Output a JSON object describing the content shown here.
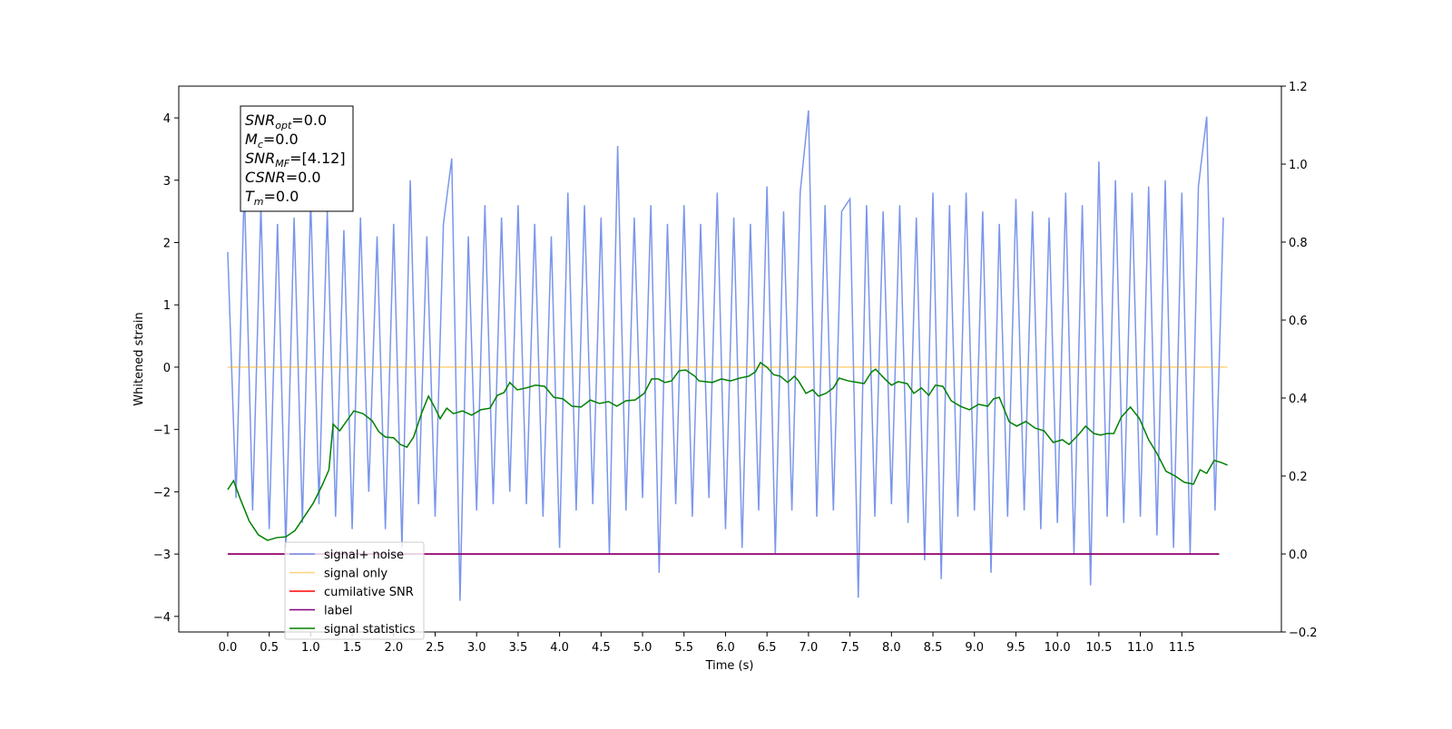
{
  "chart_data": {
    "type": "line",
    "xlabel": "Time (s)",
    "ylabel": "Whitened strain",
    "xlim": [
      -0.59,
      12.7
    ],
    "ylim": [
      -4.25,
      4.51
    ],
    "y2lim": [
      -0.2,
      1.2
    ],
    "xticks": [
      {
        "value": 0,
        "label": "0.0"
      },
      {
        "value": 0.5,
        "label": "0.5"
      },
      {
        "value": 1,
        "label": "1.0"
      },
      {
        "value": 1.5,
        "label": "1.5"
      },
      {
        "value": 2,
        "label": "2.0"
      },
      {
        "value": 2.5,
        "label": "2.5"
      },
      {
        "value": 3,
        "label": "3.0"
      },
      {
        "value": 3.5,
        "label": "3.5"
      },
      {
        "value": 4,
        "label": "4.0"
      },
      {
        "value": 4.5,
        "label": "4.5"
      },
      {
        "value": 5,
        "label": "5.0"
      },
      {
        "value": 5.5,
        "label": "5.5"
      },
      {
        "value": 6,
        "label": "6.0"
      },
      {
        "value": 6.5,
        "label": "6.5"
      },
      {
        "value": 7,
        "label": "7.0"
      },
      {
        "value": 7.5,
        "label": "7.5"
      },
      {
        "value": 8,
        "label": "8.0"
      },
      {
        "value": 8.5,
        "label": "8.5"
      },
      {
        "value": 9,
        "label": "9.0"
      },
      {
        "value": 9.5,
        "label": "9.5"
      },
      {
        "value": 10,
        "label": "10.0"
      },
      {
        "value": 10.5,
        "label": "10.5"
      },
      {
        "value": 11,
        "label": "11.0"
      },
      {
        "value": 11.5,
        "label": "11.5"
      }
    ],
    "yticks": [
      {
        "value": -4,
        "label": "−4"
      },
      {
        "value": -3,
        "label": "−3"
      },
      {
        "value": -2,
        "label": "−2"
      },
      {
        "value": -1,
        "label": "−1"
      },
      0,
      1,
      2,
      3,
      4
    ],
    "y2ticks": [
      {
        "value": -0.2,
        "label": "−0.2"
      },
      {
        "value": 0,
        "label": "0.0"
      },
      {
        "value": 0.2,
        "label": "0.2"
      },
      {
        "value": 0.4,
        "label": "0.4"
      },
      {
        "value": 0.6,
        "label": "0.6"
      },
      {
        "value": 0.8,
        "label": "0.8"
      },
      {
        "value": 1,
        "label": "1.0"
      },
      {
        "value": 1.2,
        "label": "1.2"
      }
    ],
    "legend": "lower left",
    "annotation": [
      {
        "name": "SNR",
        "sub": "opt",
        "text": "=0.0"
      },
      {
        "name": "M",
        "sub": "c",
        "text": "=0.0"
      },
      {
        "name": "SNR",
        "sub": "MF",
        "text": "=[4.12]"
      },
      {
        "name": "CSNR",
        "text": "=0.0"
      },
      {
        "name": "T",
        "sub": "m",
        "text": "=0.0"
      }
    ],
    "series": [
      {
        "name": "signal+ noise",
        "color": "#4169e1",
        "alpha": 0.7,
        "x": [
          0,
          0.1,
          0.2,
          0.3,
          0.4,
          0.5,
          0.6,
          0.7,
          0.8,
          0.9,
          1,
          1.1,
          1.2,
          1.3,
          1.4,
          1.5,
          1.6,
          1.7,
          1.8,
          1.9,
          2,
          2.1,
          2.2,
          2.3,
          2.4,
          2.5,
          2.6,
          2.7,
          2.8,
          2.9,
          3,
          3.1,
          3.2,
          3.3,
          3.4,
          3.5,
          3.6,
          3.7,
          3.8,
          3.9,
          4,
          4.1,
          4.2,
          4.3,
          4.4,
          4.5,
          4.6,
          4.7,
          4.8,
          4.9,
          5,
          5.1,
          5.2,
          5.3,
          5.4,
          5.5,
          5.6,
          5.7,
          5.8,
          5.9,
          6,
          6.1,
          6.2,
          6.3,
          6.4,
          6.5,
          6.6,
          6.7,
          6.8,
          6.9,
          7,
          7.1,
          7.2,
          7.3,
          7.4,
          7.5,
          7.6,
          7.7,
          7.8,
          7.9,
          8,
          8.1,
          8.2,
          8.3,
          8.4,
          8.5,
          8.6,
          8.7,
          8.8,
          8.9,
          9,
          9.1,
          9.2,
          9.3,
          9.4,
          9.5,
          9.6,
          9.7,
          9.8,
          9.9,
          10,
          10.1,
          10.2,
          10.3,
          10.4,
          10.5,
          10.6,
          10.7,
          10.8,
          10.9,
          11,
          11.1,
          11.2,
          11.3,
          11.4,
          11.5,
          11.6,
          11.7,
          11.8,
          11.9,
          12
        ],
        "values": [
          1.85,
          -2.1,
          2.9,
          -2.3,
          2.6,
          -2.6,
          2.3,
          -2.9,
          2.4,
          -2.5,
          2.7,
          -2.2,
          2.5,
          -2.4,
          2.2,
          -2.6,
          2.4,
          -2.0,
          2.1,
          -2.6,
          2.3,
          -2.9,
          3.0,
          -2.2,
          2.1,
          -2.4,
          2.3,
          3.35,
          -3.75,
          2.1,
          -2.3,
          2.6,
          -2.2,
          2.4,
          -2.0,
          2.6,
          -2.2,
          2.3,
          -2.4,
          2.1,
          -2.9,
          2.8,
          -2.3,
          2.6,
          -2.2,
          2.4,
          -3.0,
          3.55,
          -2.3,
          2.4,
          -2.1,
          2.6,
          -3.3,
          2.3,
          -2.2,
          2.6,
          -2.4,
          2.3,
          -2.1,
          2.8,
          -2.6,
          2.4,
          -2.9,
          2.3,
          -2.3,
          2.9,
          -3.0,
          2.5,
          -2.3,
          2.8,
          4.12,
          -2.4,
          2.6,
          -2.3,
          2.5,
          2.7,
          -3.7,
          2.6,
          -2.4,
          2.5,
          -2.2,
          2.6,
          -2.5,
          2.4,
          -3.1,
          2.8,
          -3.4,
          2.6,
          -2.4,
          2.8,
          -2.3,
          2.5,
          -3.3,
          2.3,
          -2.4,
          2.7,
          -2.3,
          2.5,
          -2.6,
          2.4,
          -2.5,
          2.8,
          -3.0,
          2.6,
          -3.5,
          3.3,
          -2.4,
          3.0,
          -2.5,
          2.8,
          -2.4,
          2.9,
          -2.7,
          3.0,
          -2.9,
          2.8,
          -3.0,
          2.9,
          4.02,
          -2.3,
          2.4
        ]
      },
      {
        "name": "signal only",
        "color": "#ffa500",
        "alpha": 0.5,
        "x": [
          0,
          12.05
        ],
        "values": [
          0,
          0
        ]
      },
      {
        "name": "cumilative SNR",
        "color": "#ff0000",
        "alpha": 1,
        "axis": "y2",
        "x": [
          0,
          11.95
        ],
        "values": [
          0,
          0
        ]
      },
      {
        "name": "label",
        "color": "#800080",
        "alpha": 1,
        "axis": "y2",
        "x": [
          0,
          11.95
        ],
        "values": [
          0,
          0
        ]
      },
      {
        "name": "signal statistics",
        "color": "#008000",
        "alpha": 1,
        "axis": "y2",
        "x": [
          0,
          0.07,
          0.15,
          0.26,
          0.37,
          0.48,
          0.59,
          0.7,
          0.81,
          0.92,
          1.03,
          1.14,
          1.22,
          1.27,
          1.35,
          1.43,
          1.52,
          1.63,
          1.74,
          1.82,
          1.9,
          2,
          2.08,
          2.16,
          2.24,
          2.34,
          2.42,
          2.5,
          2.56,
          2.64,
          2.72,
          2.83,
          2.94,
          3.05,
          3.16,
          3.25,
          3.33,
          3.4,
          3.49,
          3.6,
          3.71,
          3.82,
          3.93,
          4.04,
          4.15,
          4.26,
          4.37,
          4.48,
          4.59,
          4.69,
          4.8,
          4.91,
          5.02,
          5.11,
          5.19,
          5.27,
          5.35,
          5.44,
          5.52,
          5.63,
          5.68,
          5.84,
          5.95,
          6.06,
          6.17,
          6.28,
          6.36,
          6.42,
          6.5,
          6.58,
          6.66,
          6.75,
          6.83,
          6.88,
          6.97,
          7.05,
          7.12,
          7.21,
          7.3,
          7.37,
          7.48,
          7.59,
          7.67,
          7.76,
          7.81,
          7.92,
          8,
          8.08,
          8.19,
          8.27,
          8.36,
          8.45,
          8.53,
          8.62,
          8.72,
          8.83,
          8.94,
          9.05,
          9.16,
          9.23,
          9.3,
          9.42,
          9.51,
          9.62,
          9.73,
          9.84,
          9.95,
          10.06,
          10.14,
          10.25,
          10.34,
          10.44,
          10.52,
          10.6,
          10.68,
          10.77,
          10.88,
          10.99,
          11.1,
          11.2,
          11.31,
          11.42,
          11.53,
          11.64,
          11.72,
          11.8,
          11.89,
          11.97,
          12.05
        ],
        "values": [
          0.165,
          0.188,
          0.142,
          0.084,
          0.049,
          0.035,
          0.042,
          0.044,
          0.06,
          0.095,
          0.13,
          0.177,
          0.216,
          0.333,
          0.316,
          0.34,
          0.367,
          0.36,
          0.342,
          0.314,
          0.3,
          0.298,
          0.281,
          0.274,
          0.3,
          0.363,
          0.405,
          0.374,
          0.347,
          0.374,
          0.36,
          0.367,
          0.356,
          0.37,
          0.374,
          0.407,
          0.414,
          0.44,
          0.421,
          0.426,
          0.433,
          0.43,
          0.402,
          0.398,
          0.379,
          0.377,
          0.395,
          0.386,
          0.391,
          0.379,
          0.393,
          0.395,
          0.412,
          0.449,
          0.449,
          0.44,
          0.444,
          0.47,
          0.472,
          0.456,
          0.444,
          0.44,
          0.449,
          0.444,
          0.451,
          0.456,
          0.467,
          0.491,
          0.479,
          0.46,
          0.456,
          0.44,
          0.456,
          0.444,
          0.412,
          0.421,
          0.405,
          0.412,
          0.426,
          0.451,
          0.444,
          0.44,
          0.437,
          0.467,
          0.474,
          0.449,
          0.433,
          0.442,
          0.437,
          0.412,
          0.426,
          0.407,
          0.433,
          0.43,
          0.393,
          0.379,
          0.37,
          0.384,
          0.379,
          0.398,
          0.402,
          0.339,
          0.328,
          0.34,
          0.323,
          0.316,
          0.286,
          0.293,
          0.281,
          0.305,
          0.328,
          0.309,
          0.305,
          0.309,
          0.309,
          0.351,
          0.377,
          0.347,
          0.293,
          0.258,
          0.212,
          0.2,
          0.184,
          0.179,
          0.216,
          0.207,
          0.24,
          0.235,
          0.228
        ]
      }
    ]
  }
}
